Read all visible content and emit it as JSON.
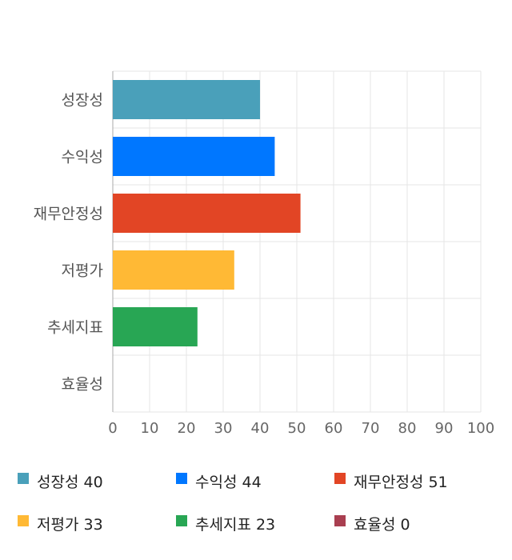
{
  "chart_data": {
    "type": "bar",
    "orientation": "horizontal",
    "categories": [
      "성장성",
      "수익성",
      "재무안정성",
      "저평가",
      "추세지표",
      "효율성"
    ],
    "values": [
      40,
      44,
      51,
      33,
      23,
      0
    ],
    "colors": [
      "#4aa0ba",
      "#0077ff",
      "#e24525",
      "#ffb935",
      "#28a654",
      "#a93f50"
    ],
    "xlim": [
      0,
      100
    ],
    "xticks": [
      "0",
      "10",
      "20",
      "30",
      "40",
      "50",
      "60",
      "70",
      "80",
      "90",
      "100"
    ],
    "grid": true,
    "legend_position": "bottom",
    "legend": [
      "성장성 40",
      "수익성 44",
      "재무안정성 51",
      "저평가 33",
      "추세지표 23",
      "효율성 0"
    ]
  }
}
